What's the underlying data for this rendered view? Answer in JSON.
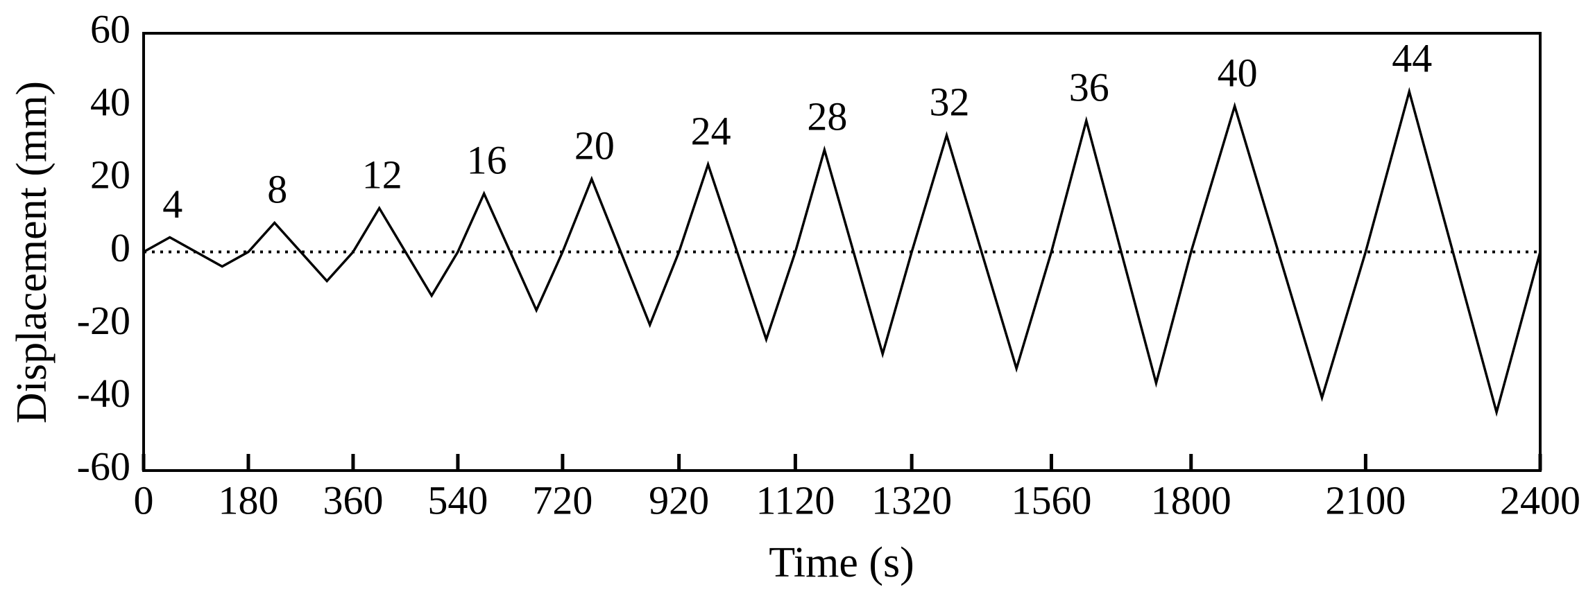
{
  "chart_data": {
    "type": "line",
    "x_label": "Time (s)",
    "y_label": "Displacement (mm)",
    "x": [
      0,
      45,
      135,
      180,
      225,
      315,
      360,
      405,
      495,
      540,
      585,
      675,
      720,
      770,
      870,
      920,
      970,
      1070,
      1120,
      1170,
      1270,
      1320,
      1380,
      1500,
      1560,
      1620,
      1740,
      1800,
      1875,
      2025,
      2100,
      2175,
      2325,
      2400
    ],
    "series": [
      {
        "color": "#000000",
        "values": [
          0,
          4,
          -4,
          0,
          8,
          -8,
          0,
          12,
          -12,
          0,
          16,
          -16,
          0,
          20,
          -20,
          0,
          24,
          -24,
          0,
          28,
          -28,
          0,
          32,
          -32,
          0,
          36,
          -36,
          0,
          40,
          -40,
          0,
          44,
          -44,
          0
        ]
      }
    ],
    "xlim": [
      0,
      2400
    ],
    "xticks": [
      0,
      180,
      360,
      540,
      720,
      920,
      1120,
      1320,
      1560,
      1800,
      2100,
      2400
    ],
    "ylim": [
      -60,
      60
    ],
    "yticks": [
      -60,
      -40,
      -20,
      0,
      20,
      40,
      60
    ],
    "zero_line": true,
    "peak_labels": true
  }
}
